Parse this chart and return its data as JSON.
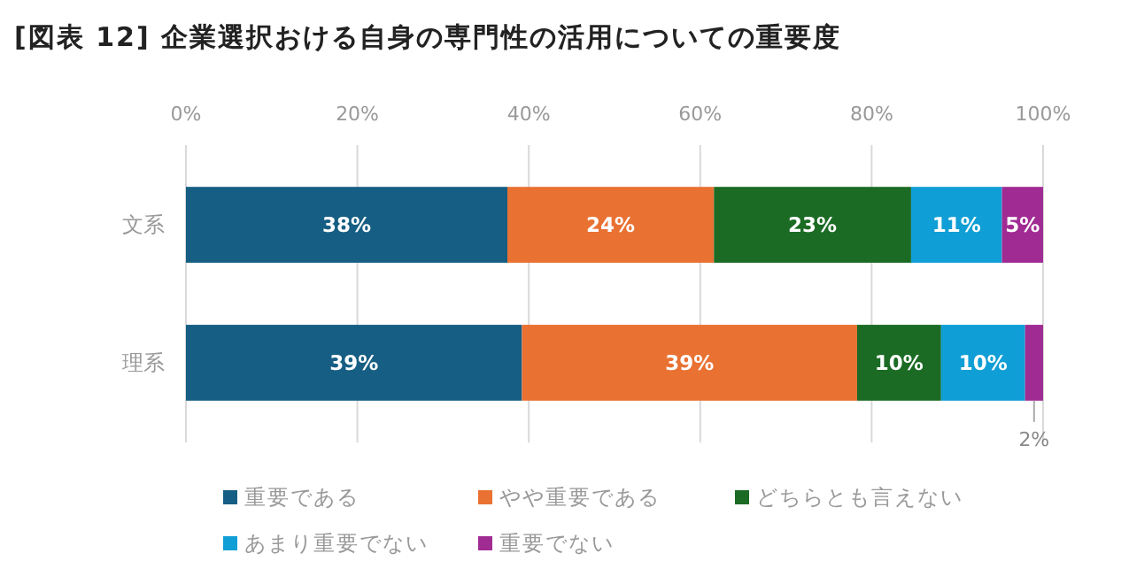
{
  "chart_data": {
    "type": "bar",
    "orientation": "horizontal",
    "stacked": true,
    "title": "[図表 12] 企業選択おける自身の専門性の活用についての重要度",
    "categories": [
      "文系",
      "理系"
    ],
    "series": [
      {
        "name": "重要である",
        "color": "#165e83",
        "values": [
          37.5,
          39.2
        ],
        "value_labels": [
          "38%",
          "39%"
        ]
      },
      {
        "name": "やや重要である",
        "color": "#e97132",
        "values": [
          24.1,
          39.1
        ],
        "value_labels": [
          "24%",
          "39%"
        ]
      },
      {
        "name": "どちらとも言えない",
        "color": "#1b6b24",
        "values": [
          23.0,
          9.8
        ],
        "value_labels": [
          "23%",
          "10%"
        ]
      },
      {
        "name": "あまり重要でない",
        "color": "#0f9ed5",
        "values": [
          10.6,
          9.8
        ],
        "value_labels": [
          "11%",
          "10%"
        ]
      },
      {
        "name": "重要でない",
        "color": "#a02b93",
        "values": [
          4.8,
          2.1
        ],
        "value_labels": [
          "5%",
          "2%"
        ]
      }
    ],
    "xlim": [
      0,
      100
    ],
    "xticks": [
      {
        "value": 0,
        "label": "0%"
      },
      {
        "value": 20,
        "label": "20%"
      },
      {
        "value": 40,
        "label": "40%"
      },
      {
        "value": 60,
        "label": "60%"
      },
      {
        "value": 80,
        "label": "80%"
      },
      {
        "value": 100,
        "label": "100%"
      }
    ],
    "grid": "x",
    "legend": "bottom"
  }
}
